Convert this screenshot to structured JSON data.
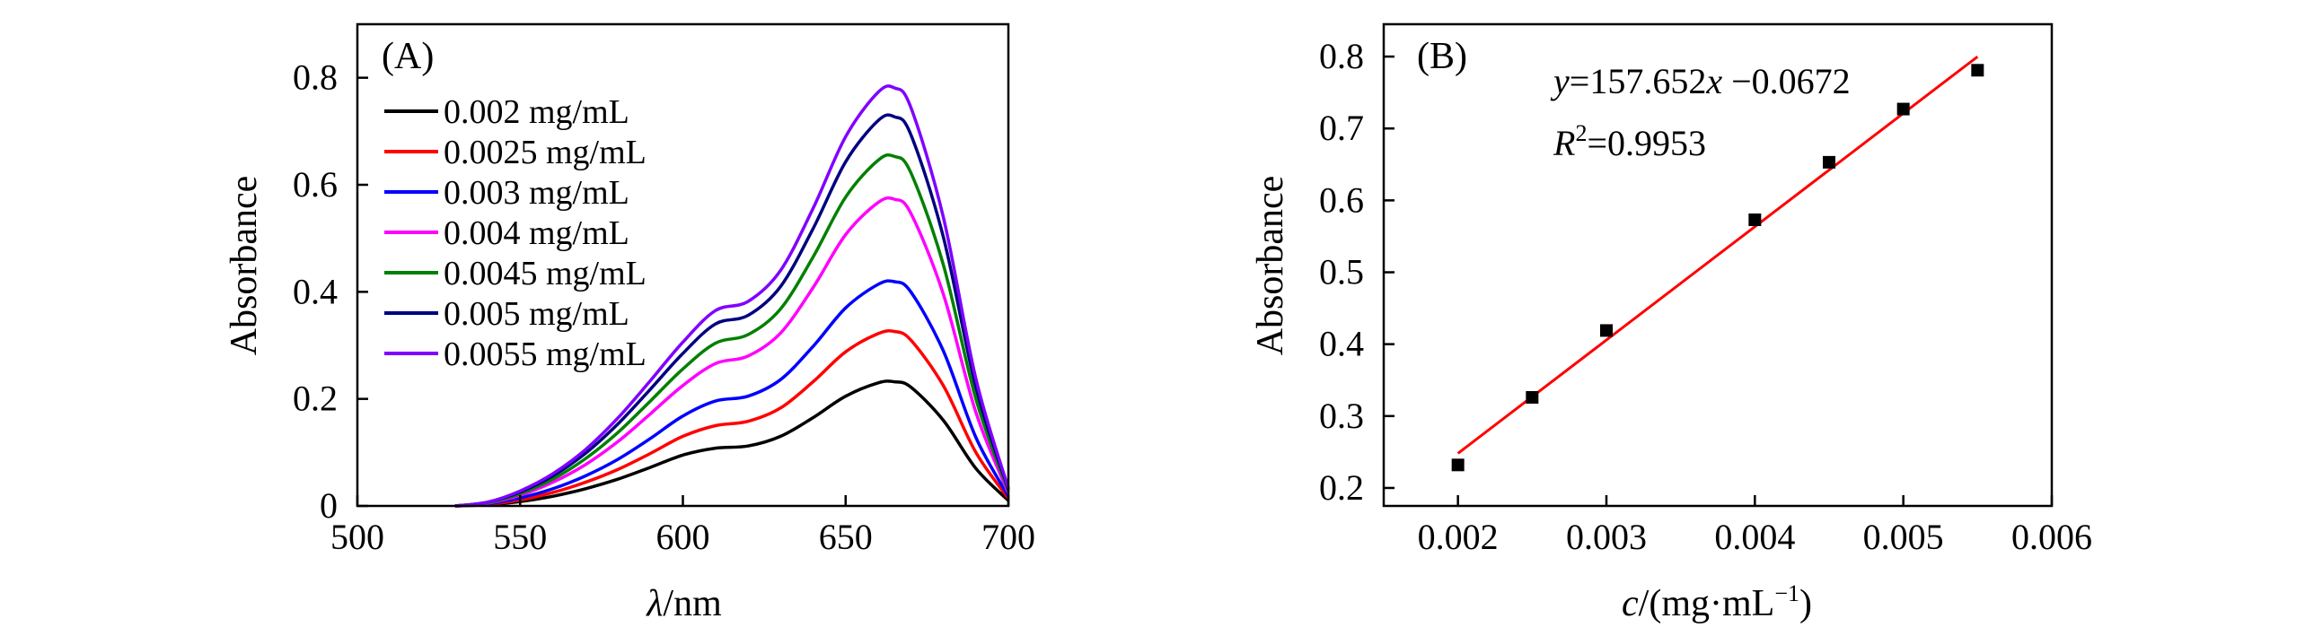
{
  "chart_data": [
    {
      "panel_label": "(A)",
      "type": "line",
      "xlabel_var": "λ",
      "xlabel_unit": "/nm",
      "ylabel": "Absorbance",
      "xlim": [
        500,
        700
      ],
      "ylim": [
        0,
        0.9
      ],
      "xticks": [
        500,
        550,
        600,
        650,
        700
      ],
      "yticks": [
        0,
        0.2,
        0.4,
        0.6,
        0.8
      ],
      "xtick_labels": [
        "500",
        "550",
        "600",
        "650",
        "700"
      ],
      "ytick_labels": [
        "0",
        "0.2",
        "0.4",
        "0.6",
        "0.8"
      ],
      "legend_position": "top-left",
      "x": [
        530,
        540,
        550,
        560,
        570,
        580,
        590,
        600,
        610,
        620,
        630,
        640,
        650,
        660,
        665,
        670,
        680,
        690,
        700
      ],
      "series": [
        {
          "name": "0.002 mg/mL",
          "color": "#000000",
          "values": [
            0.0,
            0.002,
            0.008,
            0.018,
            0.032,
            0.05,
            0.072,
            0.095,
            0.108,
            0.112,
            0.13,
            0.165,
            0.205,
            0.23,
            0.232,
            0.222,
            0.16,
            0.07,
            0.01
          ]
        },
        {
          "name": "0.0025 mg/mL",
          "color": "#ff0000",
          "values": [
            0.0,
            0.003,
            0.011,
            0.025,
            0.044,
            0.068,
            0.098,
            0.13,
            0.15,
            0.158,
            0.183,
            0.232,
            0.288,
            0.322,
            0.326,
            0.31,
            0.225,
            0.1,
            0.014
          ]
        },
        {
          "name": "0.003 mg/mL",
          "color": "#0000ff",
          "values": [
            0.0,
            0.004,
            0.015,
            0.032,
            0.056,
            0.087,
            0.126,
            0.168,
            0.196,
            0.205,
            0.236,
            0.298,
            0.37,
            0.414,
            0.419,
            0.4,
            0.29,
            0.128,
            0.018
          ]
        },
        {
          "name": "0.004 mg/mL",
          "color": "#ff00ff",
          "values": [
            0.0,
            0.005,
            0.02,
            0.044,
            0.077,
            0.12,
            0.172,
            0.225,
            0.266,
            0.28,
            0.323,
            0.408,
            0.507,
            0.567,
            0.573,
            0.547,
            0.396,
            0.175,
            0.024
          ]
        },
        {
          "name": "0.0045 mg/mL",
          "color": "#008000",
          "values": [
            0.0,
            0.006,
            0.023,
            0.05,
            0.088,
            0.137,
            0.196,
            0.256,
            0.304,
            0.32,
            0.368,
            0.465,
            0.577,
            0.646,
            0.653,
            0.623,
            0.451,
            0.2,
            0.028
          ]
        },
        {
          "name": "0.005 mg/mL",
          "color": "#000080",
          "values": [
            0.0,
            0.007,
            0.026,
            0.056,
            0.098,
            0.153,
            0.218,
            0.285,
            0.34,
            0.356,
            0.41,
            0.518,
            0.643,
            0.72,
            0.727,
            0.694,
            0.503,
            0.222,
            0.031
          ]
        },
        {
          "name": "0.0055 mg/mL",
          "color": "#8000ff",
          "values": [
            0.0,
            0.007,
            0.028,
            0.06,
            0.105,
            0.164,
            0.234,
            0.306,
            0.365,
            0.382,
            0.44,
            0.556,
            0.69,
            0.773,
            0.781,
            0.745,
            0.54,
            0.238,
            0.033
          ]
        }
      ]
    },
    {
      "panel_label": "(B)",
      "type": "scatter",
      "xlabel_var": "c",
      "xlabel_unit": "/(mg·mL",
      "xlabel_sup": "−1",
      "xlabel_close": ")",
      "ylabel": "Absorbance",
      "xlim": [
        0.0015,
        0.006
      ],
      "ylim": [
        0.175,
        0.845
      ],
      "xticks": [
        0.002,
        0.003,
        0.004,
        0.005,
        0.006
      ],
      "yticks": [
        0.2,
        0.3,
        0.4,
        0.5,
        0.6,
        0.7,
        0.8
      ],
      "xtick_labels": [
        "0.002",
        "0.003",
        "0.004",
        "0.005",
        "0.006"
      ],
      "ytick_labels": [
        "0.2",
        "0.3",
        "0.4",
        "0.5",
        "0.6",
        "0.7",
        "0.8"
      ],
      "points": {
        "x": [
          0.002,
          0.0025,
          0.003,
          0.004,
          0.0045,
          0.005,
          0.0055
        ],
        "y": [
          0.232,
          0.326,
          0.419,
          0.573,
          0.653,
          0.727,
          0.781
        ],
        "color": "#000000"
      },
      "fit": {
        "slope": 157.652,
        "intercept": -0.0672,
        "x_range": [
          0.002,
          0.0055
        ],
        "color": "#ff0000",
        "equation_var_y": "y",
        "equation_mid": "=157.652",
        "equation_var_x": "x",
        "equation_tail": "−0.0672",
        "r2_var": "R",
        "r2_sup": "2",
        "r2_value": "=0.9953"
      }
    }
  ]
}
